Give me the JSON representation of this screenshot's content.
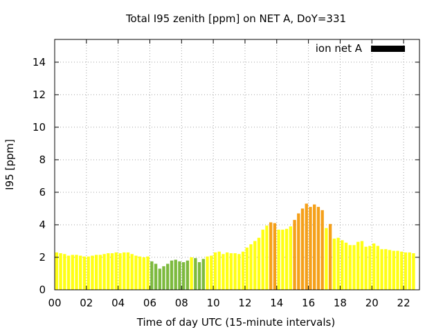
{
  "chart_data": {
    "type": "bar",
    "title": "Total I95 zenith [ppm] on NET A, DoY=331",
    "xlabel": "Time of day UTC (15-minute intervals)",
    "ylabel": "I95 [ppm]",
    "xlim": [
      0,
      23.0
    ],
    "ylim": [
      0,
      15.4
    ],
    "xticks": [
      "00",
      "02",
      "04",
      "06",
      "08",
      "10",
      "12",
      "14",
      "16",
      "18",
      "20",
      "22"
    ],
    "xtick_values": [
      0,
      2,
      4,
      6,
      8,
      10,
      12,
      14,
      16,
      18,
      20,
      22
    ],
    "yticks": [
      "0",
      "2",
      "4",
      "6",
      "8",
      "10",
      "12",
      "14"
    ],
    "ytick_values": [
      0,
      2,
      4,
      6,
      8,
      10,
      12,
      14
    ],
    "grid": true,
    "legend": {
      "label": "ion net A",
      "color": "#000000",
      "placement": "top-right"
    },
    "bar_width_hours": 0.19,
    "interval_hours": 0.25,
    "values": [
      2.3,
      2.25,
      2.2,
      2.1,
      2.15,
      2.15,
      2.1,
      2.05,
      2.05,
      2.1,
      2.15,
      2.15,
      2.2,
      2.25,
      2.25,
      2.3,
      2.25,
      2.3,
      2.3,
      2.2,
      2.1,
      2.05,
      2.0,
      2.05,
      1.75,
      1.6,
      1.3,
      1.45,
      1.6,
      1.8,
      1.85,
      1.75,
      1.7,
      1.8,
      2.0,
      1.95,
      1.7,
      1.9,
      2.05,
      2.1,
      2.3,
      2.35,
      2.2,
      2.3,
      2.25,
      2.25,
      2.2,
      2.35,
      2.6,
      2.8,
      3.0,
      3.2,
      3.7,
      3.95,
      4.15,
      4.1,
      3.7,
      3.7,
      3.75,
      3.9,
      4.3,
      4.7,
      5.0,
      5.3,
      5.1,
      5.25,
      5.1,
      4.9,
      3.8,
      4.05,
      3.15,
      3.2,
      3.05,
      2.9,
      2.75,
      2.75,
      2.95,
      3.0,
      2.65,
      2.7,
      2.85,
      2.7,
      2.5,
      2.5,
      2.45,
      2.4,
      2.4,
      2.35,
      2.3,
      2.3,
      2.25
    ],
    "level_colors": {
      "yellow": "#ffff14",
      "green": "#7dba3e",
      "orange": "#f5a01a"
    },
    "bar_levels": [
      "yellow",
      "yellow",
      "yellow",
      "yellow",
      "yellow",
      "yellow",
      "yellow",
      "yellow",
      "yellow",
      "yellow",
      "yellow",
      "yellow",
      "yellow",
      "yellow",
      "yellow",
      "yellow",
      "yellow",
      "yellow",
      "yellow",
      "yellow",
      "yellow",
      "yellow",
      "yellow",
      "yellow",
      "green",
      "green",
      "green",
      "green",
      "green",
      "green",
      "green",
      "green",
      "green",
      "green",
      "yellow",
      "green",
      "green",
      "green",
      "yellow",
      "yellow",
      "yellow",
      "yellow",
      "yellow",
      "yellow",
      "yellow",
      "yellow",
      "yellow",
      "yellow",
      "yellow",
      "yellow",
      "yellow",
      "yellow",
      "yellow",
      "yellow",
      "orange",
      "orange",
      "yellow",
      "yellow",
      "yellow",
      "yellow",
      "orange",
      "orange",
      "orange",
      "orange",
      "orange",
      "orange",
      "orange",
      "orange",
      "yellow",
      "orange",
      "yellow",
      "yellow",
      "yellow",
      "yellow",
      "yellow",
      "yellow",
      "yellow",
      "yellow",
      "yellow",
      "yellow",
      "yellow",
      "yellow",
      "yellow",
      "yellow",
      "yellow",
      "yellow",
      "yellow",
      "yellow",
      "yellow",
      "yellow",
      "yellow"
    ]
  }
}
